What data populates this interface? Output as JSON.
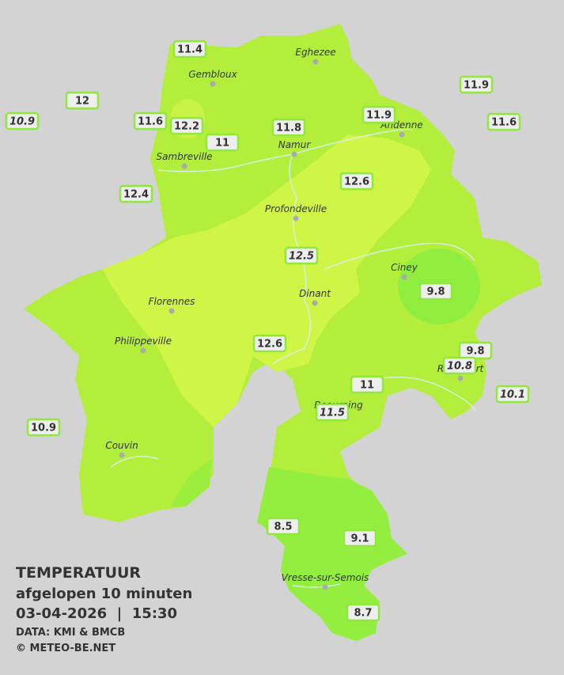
{
  "title": {
    "line1": "TEMPERATUUR",
    "line2": "afgelopen 10 minuten",
    "line3": "03-04-2026  |  15:30",
    "source": "DATA: KMI & BMCB",
    "copyright": "© METEO-BE.NET"
  },
  "cities": [
    {
      "name": "Eghezee"
    },
    {
      "name": "Gembloux"
    },
    {
      "name": "Andenne"
    },
    {
      "name": "Namur"
    },
    {
      "name": "Sambreville"
    },
    {
      "name": "Profondeville"
    },
    {
      "name": "Ciney"
    },
    {
      "name": "Florennes"
    },
    {
      "name": "Dinant"
    },
    {
      "name": "Philippeville"
    },
    {
      "name": "Rochefort"
    },
    {
      "name": "Beauraing"
    },
    {
      "name": "Couvin"
    },
    {
      "name": "Vresse-sur-Semois"
    }
  ],
  "stations": [
    {
      "value": 11.4
    },
    {
      "value": 12.0
    },
    {
      "value": 10.9,
      "italic": true
    },
    {
      "value": 11.6
    },
    {
      "value": 12.2
    },
    {
      "value": 11.0
    },
    {
      "value": 11.8
    },
    {
      "value": 11.9
    },
    {
      "value": 11.9
    },
    {
      "value": 11.6
    },
    {
      "value": 12.4
    },
    {
      "value": 12.6
    },
    {
      "value": 12.5,
      "italic": true
    },
    {
      "value": 9.8
    },
    {
      "value": 12.6
    },
    {
      "value": 9.8
    },
    {
      "value": 10.8,
      "italic": true
    },
    {
      "value": 10.1,
      "italic": true
    },
    {
      "value": 11.0
    },
    {
      "value": 11.5,
      "italic": true
    },
    {
      "value": 10.9
    },
    {
      "value": 8.5
    },
    {
      "value": 9.1
    },
    {
      "value": 8.7
    }
  ]
}
